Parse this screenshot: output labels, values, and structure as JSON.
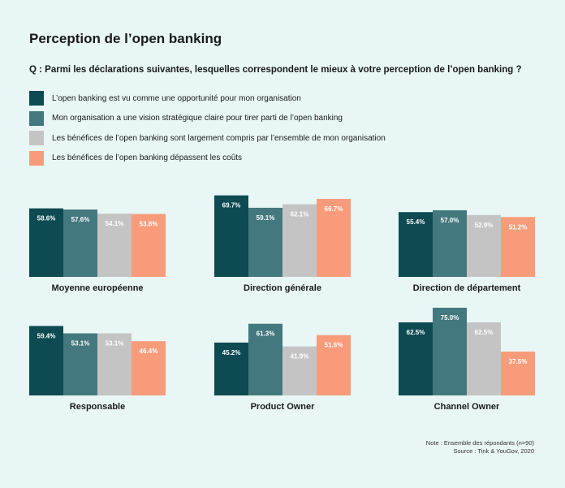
{
  "title": "Perception de l’open banking",
  "question": "Q : Parmi les déclarations suivantes, lesquelles correspondent le mieux à votre perception de l’open banking ?",
  "colors": [
    "#0d4a52",
    "#44787f",
    "#c4c4c4",
    "#f89b7b"
  ],
  "chart_data": {
    "type": "bar",
    "series": [
      {
        "name": "L’open banking est vu comme une opportunité pour mon organisation"
      },
      {
        "name": "Mon organisation a une vision stratégique claire pour tirer parti de l’open banking"
      },
      {
        "name": "Les bénéfices de l’open banking sont largement compris par l’ensemble de mon organisation"
      },
      {
        "name": "Les bénéfices de l’open banking dépassent les coûts"
      }
    ],
    "groups": [
      {
        "label": "Moyenne européenne",
        "values": [
          58.6,
          57.6,
          54.1,
          53.8
        ],
        "labels": [
          "58.6%",
          "57.6%",
          "54.1%",
          "53.8%"
        ]
      },
      {
        "label": "Direction générale",
        "values": [
          69.7,
          59.1,
          62.1,
          66.7
        ],
        "labels": [
          "69.7%",
          "59.1%",
          "62.1%",
          "66.7%"
        ]
      },
      {
        "label": "Direction de département",
        "values": [
          55.4,
          57.0,
          52.9,
          51.2
        ],
        "labels": [
          "55.4%",
          "57.0%",
          "52.9%",
          "51.2%"
        ]
      },
      {
        "label": "Responsable",
        "values": [
          59.4,
          53.1,
          53.1,
          46.4
        ],
        "labels": [
          "59.4%",
          "53.1%",
          "53.1%",
          "46.4%"
        ]
      },
      {
        "label": "Product Owner",
        "values": [
          45.2,
          61.3,
          41.9,
          51.6
        ],
        "labels": [
          "45.2%",
          "61.3%",
          "41.9%",
          "51.6%"
        ]
      },
      {
        "label": "Channel Owner",
        "values": [
          62.5,
          75.0,
          62.5,
          37.5
        ],
        "labels": [
          "62.5%",
          "75.0%",
          "62.5%",
          "37.5%"
        ]
      }
    ]
  },
  "note": {
    "line1": "Note : Ensemble des répondants (n=90)",
    "line2": "Source : Tink & YouGov, 2020"
  }
}
